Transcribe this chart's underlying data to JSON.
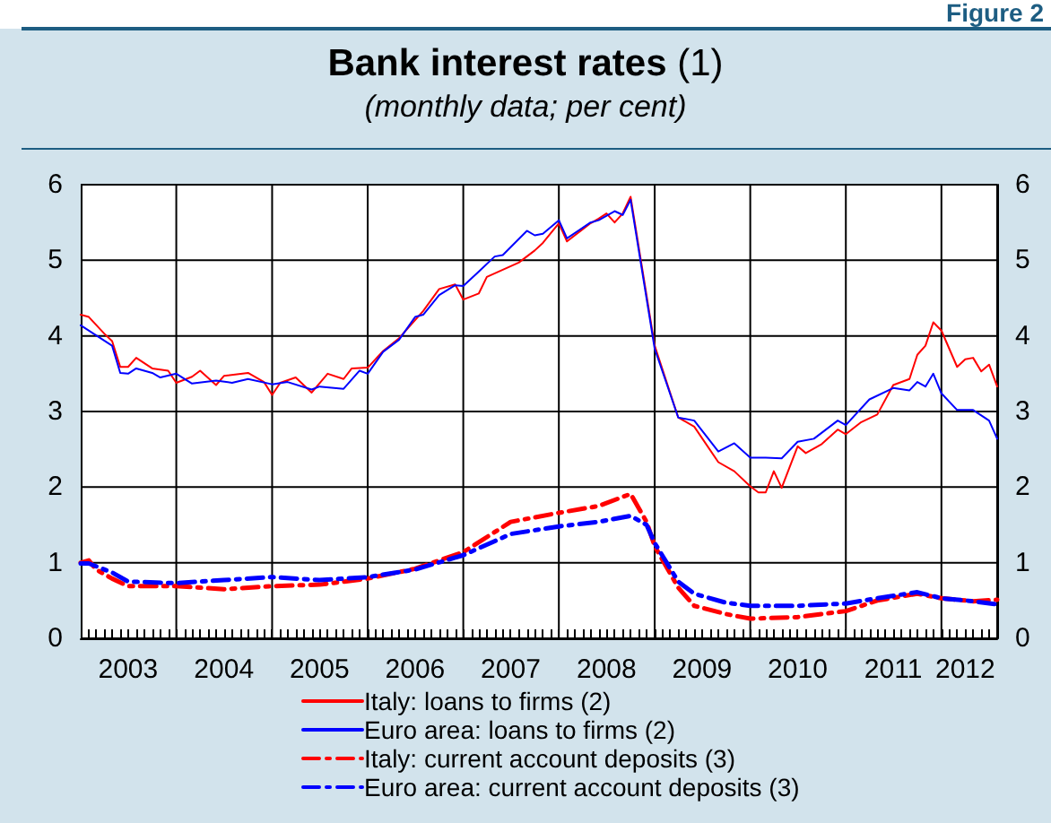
{
  "chart_data": {
    "type": "line",
    "title": "Bank interest rates (1)",
    "subtitle": "(monthly data; per cent)",
    "annotations": [
      "Figure 2"
    ],
    "xlim": [
      "2003-01",
      "2012-08"
    ],
    "xticks": [
      {
        "value": "2003-07",
        "label": "2003"
      },
      {
        "value": "2004-07",
        "label": "2004"
      },
      {
        "value": "2005-07",
        "label": "2005"
      },
      {
        "value": "2006-07",
        "label": "2006"
      },
      {
        "value": "2007-07",
        "label": "2007"
      },
      {
        "value": "2008-07",
        "label": "2008"
      },
      {
        "value": "2009-07",
        "label": "2009"
      },
      {
        "value": "2010-07",
        "label": "2010"
      },
      {
        "value": "2011-07",
        "label": "2011"
      },
      {
        "value": "2012-04",
        "label": "2012"
      },
      {
        "value": "2004-01",
        "label": null
      },
      {
        "value": "2005-01",
        "label": null
      },
      {
        "value": "2006-01",
        "label": null
      },
      {
        "value": "2007-01",
        "label": null
      },
      {
        "value": "2008-01",
        "label": null
      },
      {
        "value": "2009-01",
        "label": null
      },
      {
        "value": "2010-01",
        "label": null
      },
      {
        "value": "2011-01",
        "label": null
      },
      {
        "value": "2012-01",
        "label": null
      }
    ],
    "ylim": [
      0,
      6
    ],
    "yticks": [
      0,
      1,
      2,
      3,
      4,
      5,
      6
    ],
    "y2lim": [
      0,
      6
    ],
    "y2ticks": [
      0,
      1,
      2,
      3,
      4,
      5,
      6
    ],
    "grid": true,
    "legend": "bottom",
    "marker": "none",
    "series": [
      {
        "name": "Italy: loans to firms (2)",
        "color": "#ff0000",
        "line_style": "solid",
        "x": [
          "2003-01",
          "2003-02",
          "2003-04",
          "2003-05",
          "2003-06",
          "2003-07",
          "2003-08",
          "2003-10",
          "2003-12",
          "2004-01",
          "2004-03",
          "2004-04",
          "2004-06",
          "2004-07",
          "2004-10",
          "2004-12",
          "2005-01",
          "2005-02",
          "2005-04",
          "2005-06",
          "2005-08",
          "2005-10",
          "2005-11",
          "2006-01",
          "2006-03",
          "2006-05",
          "2006-08",
          "2006-10",
          "2006-12",
          "2007-01",
          "2007-03",
          "2007-04",
          "2007-08",
          "2007-10",
          "2007-11",
          "2008-01",
          "2008-02",
          "2008-05",
          "2008-06",
          "2008-07",
          "2008-08",
          "2008-09",
          "2008-10",
          "2009-01",
          "2009-04",
          "2009-06",
          "2009-09",
          "2009-11",
          "2010-01",
          "2010-02",
          "2010-03",
          "2010-04",
          "2010-05",
          "2010-07",
          "2010-08",
          "2010-10",
          "2010-12",
          "2011-01",
          "2011-03",
          "2011-05",
          "2011-07",
          "2011-09",
          "2011-10",
          "2011-11",
          "2011-12",
          "2012-01",
          "2012-03",
          "2012-04",
          "2012-05",
          "2012-06",
          "2012-07",
          "2012-08"
        ],
        "values": [
          4.28,
          4.25,
          4.03,
          3.93,
          3.59,
          3.59,
          3.71,
          3.57,
          3.54,
          3.38,
          3.46,
          3.54,
          3.35,
          3.47,
          3.51,
          3.39,
          3.22,
          3.38,
          3.45,
          3.25,
          3.5,
          3.43,
          3.57,
          3.58,
          3.8,
          3.97,
          4.33,
          4.62,
          4.68,
          4.48,
          4.56,
          4.78,
          4.97,
          5.13,
          5.23,
          5.49,
          5.25,
          5.49,
          5.55,
          5.62,
          5.5,
          5.62,
          5.84,
          3.87,
          2.92,
          2.8,
          2.33,
          2.21,
          2.01,
          1.93,
          1.93,
          2.21,
          1.99,
          2.54,
          2.45,
          2.57,
          2.76,
          2.7,
          2.86,
          2.96,
          3.35,
          3.43,
          3.75,
          3.87,
          4.18,
          4.07,
          3.59,
          3.69,
          3.71,
          3.53,
          3.62,
          3.33
        ]
      },
      {
        "name": "Euro area: loans to firms (2)",
        "color": "#0000ff",
        "line_style": "solid",
        "x": [
          "2003-01",
          "2003-05",
          "2003-06",
          "2003-07",
          "2003-08",
          "2003-10",
          "2003-11",
          "2004-01",
          "2004-03",
          "2004-06",
          "2004-08",
          "2004-10",
          "2005-01",
          "2005-03",
          "2005-06",
          "2005-07",
          "2005-10",
          "2005-12",
          "2006-01",
          "2006-03",
          "2006-05",
          "2006-07",
          "2006-08",
          "2006-10",
          "2006-12",
          "2007-01",
          "2007-03",
          "2007-05",
          "2007-06",
          "2007-09",
          "2007-10",
          "2007-11",
          "2008-01",
          "2008-02",
          "2008-05",
          "2008-06",
          "2008-08",
          "2008-09",
          "2008-10",
          "2009-01",
          "2009-04",
          "2009-06",
          "2009-09",
          "2009-11",
          "2010-01",
          "2010-03",
          "2010-05",
          "2010-07",
          "2010-09",
          "2010-12",
          "2011-01",
          "2011-04",
          "2011-07",
          "2011-09",
          "2011-10",
          "2011-11",
          "2011-12",
          "2012-01",
          "2012-03",
          "2012-05",
          "2012-07",
          "2012-08"
        ],
        "values": [
          4.14,
          3.87,
          3.51,
          3.5,
          3.57,
          3.51,
          3.45,
          3.5,
          3.37,
          3.41,
          3.38,
          3.43,
          3.36,
          3.39,
          3.29,
          3.33,
          3.3,
          3.54,
          3.5,
          3.79,
          3.95,
          4.25,
          4.28,
          4.54,
          4.67,
          4.66,
          4.85,
          5.05,
          5.07,
          5.39,
          5.33,
          5.35,
          5.53,
          5.29,
          5.5,
          5.53,
          5.65,
          5.6,
          5.8,
          3.83,
          2.92,
          2.88,
          2.47,
          2.58,
          2.39,
          2.39,
          2.38,
          2.6,
          2.64,
          2.88,
          2.82,
          3.16,
          3.31,
          3.28,
          3.39,
          3.33,
          3.5,
          3.24,
          3.02,
          3.02,
          2.88,
          2.64
        ]
      },
      {
        "name": "Italy: current account deposits (3)",
        "color": "#ff0000",
        "line_style": "dashed",
        "x": [
          "2003-01",
          "2003-02",
          "2003-03",
          "2003-05",
          "2003-07",
          "2004-01",
          "2004-07",
          "2005-01",
          "2005-07",
          "2006-01",
          "2006-07",
          "2007-01",
          "2007-07",
          "2008-01",
          "2008-06",
          "2008-10",
          "2008-12",
          "2009-01",
          "2009-04",
          "2009-06",
          "2009-10",
          "2010-01",
          "2010-07",
          "2011-01",
          "2011-05",
          "2011-10",
          "2012-01",
          "2012-05",
          "2012-08"
        ],
        "values": [
          1.0,
          1.03,
          0.91,
          0.79,
          0.69,
          0.69,
          0.65,
          0.69,
          0.71,
          0.79,
          0.92,
          1.14,
          1.54,
          1.66,
          1.75,
          1.91,
          1.54,
          1.22,
          0.67,
          0.43,
          0.32,
          0.26,
          0.28,
          0.36,
          0.5,
          0.59,
          0.53,
          0.49,
          0.51
        ]
      },
      {
        "name": "Euro area: current account deposits (3)",
        "color": "#0000ff",
        "line_style": "dashed",
        "x": [
          "2003-01",
          "2003-02",
          "2003-05",
          "2003-07",
          "2004-01",
          "2004-07",
          "2005-01",
          "2005-07",
          "2006-01",
          "2006-07",
          "2007-01",
          "2007-07",
          "2008-01",
          "2008-06",
          "2008-10",
          "2008-12",
          "2009-01",
          "2009-04",
          "2009-06",
          "2009-10",
          "2010-01",
          "2010-07",
          "2011-01",
          "2011-05",
          "2011-10",
          "2012-01",
          "2012-05",
          "2012-08"
        ],
        "values": [
          0.99,
          0.99,
          0.87,
          0.75,
          0.73,
          0.77,
          0.81,
          0.77,
          0.81,
          0.91,
          1.1,
          1.38,
          1.48,
          1.54,
          1.62,
          1.5,
          1.26,
          0.75,
          0.59,
          0.47,
          0.43,
          0.43,
          0.46,
          0.53,
          0.61,
          0.53,
          0.49,
          0.45
        ]
      }
    ]
  }
}
